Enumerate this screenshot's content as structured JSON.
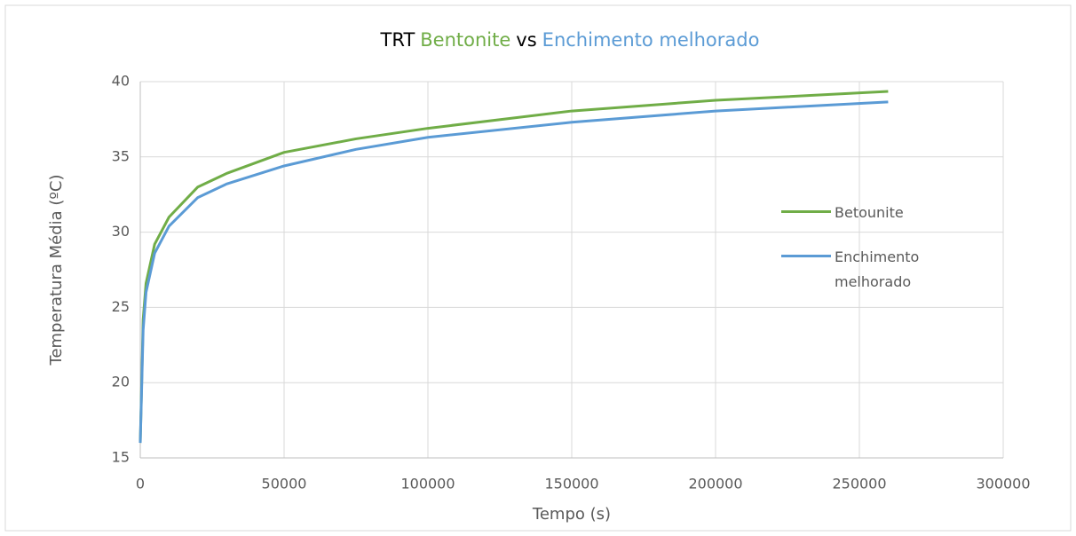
{
  "chart_data": {
    "type": "line",
    "title_parts": [
      {
        "text": "TRT",
        "color": "#000000"
      },
      {
        "text": "Bentonite",
        "color": "#70ad47"
      },
      {
        "text": "vs",
        "color": "#000000"
      },
      {
        "text": "Enchimento melhorado",
        "color": "#5b9bd5"
      }
    ],
    "xlabel": "Tempo (s)",
    "ylabel": "Temperatura  Média (ºC)",
    "x": [
      0,
      1000,
      2000,
      5000,
      10000,
      20000,
      30000,
      50000,
      75000,
      100000,
      150000,
      200000,
      260000
    ],
    "series": [
      {
        "name": "Betounite",
        "color": "#70ad47",
        "values": [
          16,
          24.2,
          26.6,
          29.2,
          31.0,
          33.0,
          33.9,
          35.3,
          36.2,
          36.9,
          38.05,
          38.76,
          39.35
        ]
      },
      {
        "name": "Enchimento melhorado",
        "color": "#5b9bd5",
        "values": [
          16,
          23.5,
          26.0,
          28.6,
          30.4,
          32.3,
          33.2,
          34.4,
          35.5,
          36.3,
          37.3,
          38.05,
          38.65
        ]
      }
    ],
    "xlim": [
      0,
      300000
    ],
    "xticks": [
      0,
      50000,
      100000,
      150000,
      200000,
      250000,
      300000
    ],
    "ylim": [
      15,
      40
    ],
    "yticks": [
      15,
      20,
      25,
      30,
      35,
      40
    ],
    "grid": true
  }
}
